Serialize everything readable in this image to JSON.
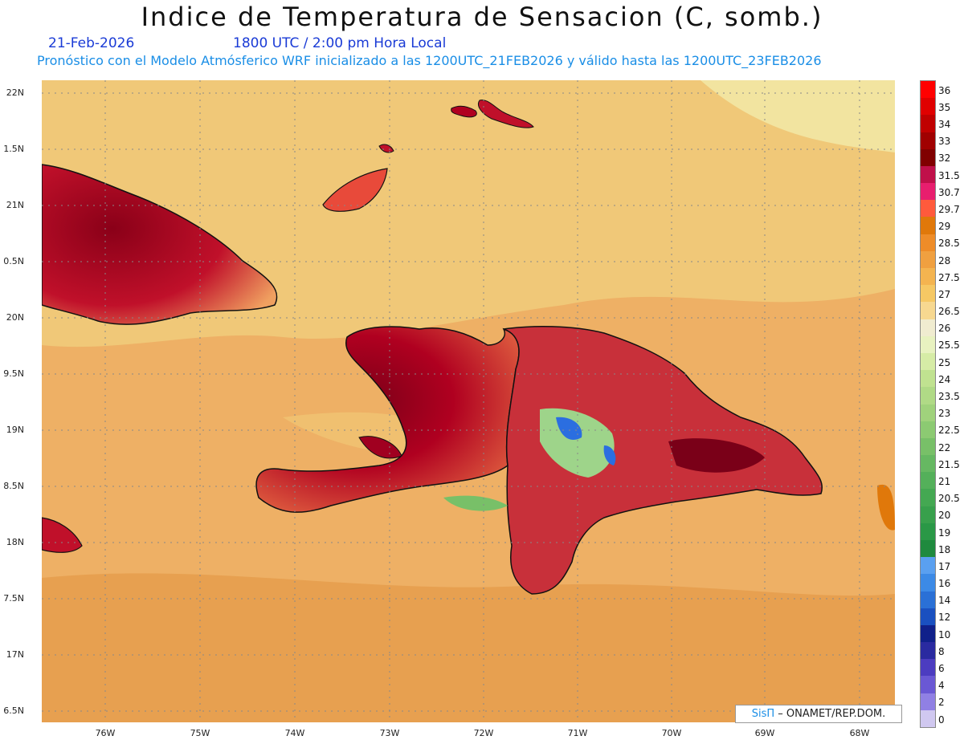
{
  "header": {
    "title": "Indice de Temperatura de Sensacion (C, somb.)",
    "date": "21-Feb-2026",
    "time": "1800 UTC / 2:00 pm Hora Local",
    "model_line": "Pronóstico con el Modelo Atmósferico WRF inicializado a las 1200UTC_21FEB2026 y válido hasta las  1200UTC_23FEB2026"
  },
  "map": {
    "lat_labels": [
      "22N",
      "1.5N",
      "21N",
      "0.5N",
      "20N",
      "9.5N",
      "19N",
      "8.5N",
      "18N",
      "7.5N",
      "17N",
      "6.5N"
    ],
    "lon_labels": [
      "76W",
      "75W",
      "74W",
      "73W",
      "72W",
      "71W",
      "70W",
      "69W",
      "68W"
    ],
    "colors": {
      "ocean_light": "#f0c878",
      "ocean_mid": "#eeb065",
      "ocean_dark": "#e7a050",
      "hot": "#b00020",
      "very_hot": "#7a0018",
      "cool": "#2b6ee0",
      "mild": "#9ed48a"
    }
  },
  "colorbar": {
    "labels": [
      "36",
      "35",
      "34",
      "33",
      "32",
      "31.5",
      "30.7",
      "29.7",
      "29",
      "28.5",
      "28",
      "27.5",
      "27",
      "26.5",
      "26",
      "25.5",
      "25",
      "24",
      "23.5",
      "23",
      "22.5",
      "22",
      "21.5",
      "21",
      "20.5",
      "20",
      "19",
      "18",
      "17",
      "16",
      "14",
      "12",
      "10",
      "8",
      "6",
      "4",
      "2",
      "0"
    ],
    "colors": [
      "#ff0000",
      "#e00000",
      "#c00000",
      "#a00000",
      "#800000",
      "#c0104a",
      "#e81e6e",
      "#ff5a3c",
      "#e0780a",
      "#ee8c28",
      "#f0a040",
      "#f4b450",
      "#f6c864",
      "#f7d890",
      "#f0ecd0",
      "#e8f2c0",
      "#d6eca6",
      "#c0e290",
      "#b0da86",
      "#a0d27c",
      "#8cca72",
      "#78c068",
      "#66b862",
      "#54b05a",
      "#44a852",
      "#38a04c",
      "#2a9846",
      "#1f8a3e",
      "#5aa0f0",
      "#3c8ae6",
      "#2a70d6",
      "#1a50c0",
      "#10208a",
      "#2a2aa0",
      "#4c3cc0",
      "#6a58d4",
      "#9080e4",
      "#d0c8f0"
    ]
  },
  "credit": {
    "brand": "SisΠ",
    "text": " – ONAMET/REP.DOM."
  }
}
